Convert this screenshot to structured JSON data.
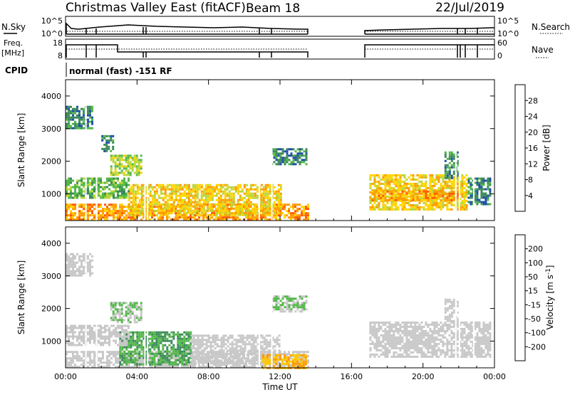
{
  "header": {
    "title": "Christmas Valley East (fitACF)",
    "beam": "Beam 18",
    "date": "22/Jul/2019"
  },
  "top_panels": {
    "nsky_label": "N.Sky",
    "nsky_ticks": [
      "10^5",
      "10^0"
    ],
    "nsearch_label": "N.Search",
    "freq_label_1": "Freq.",
    "freq_label_2": "[MHz]",
    "freq_ticks": [
      "18",
      "8"
    ],
    "nave_label": "Nave",
    "nave_ticks": [
      "60",
      "0"
    ],
    "cpid_label": "CPID",
    "cpid_text": "normal (fast) -151 RF"
  },
  "colors": {
    "power_scale": [
      "#0000ff",
      "#1f4fa8",
      "#3c8a5a",
      "#54b84a",
      "#b8d63a",
      "#ffd400",
      "#ff9a00",
      "#ff5a00",
      "#ff0000"
    ],
    "velocity_scale": [
      "#ff0000",
      "#ff5a00",
      "#ff9a00",
      "#ffc800",
      "#c8c8c8",
      "#54b84a",
      "#3c8a5a",
      "#1f4fa8",
      "#0000ff"
    ]
  },
  "chart_data": [
    {
      "type": "heatmap",
      "panel": "power",
      "xlabel": "",
      "ylabel": "Slant Range [km]",
      "colorbar_label": "Power [dB]",
      "colorbar_ticks": [
        "28",
        "24",
        "20",
        "16",
        "12",
        "8",
        "4"
      ],
      "xlim": [
        "00:00",
        "24:00"
      ],
      "ylim": [
        180,
        4500
      ],
      "x_ticks": [
        "00:00",
        "04:00",
        "08:00",
        "12:00",
        "16:00",
        "20:00",
        "00:00"
      ],
      "y_ticks": [
        "1000",
        "2000",
        "3000",
        "4000"
      ],
      "echo_regions": [
        {
          "t0": 0.0,
          "t1": 13.6,
          "r0": 180,
          "r1": 700,
          "level": 24
        },
        {
          "t0": 3.5,
          "t1": 12.0,
          "r0": 350,
          "r1": 1300,
          "level": 20
        },
        {
          "t0": 0.0,
          "t1": 3.5,
          "r0": 900,
          "r1": 1500,
          "level": 12
        },
        {
          "t0": 2.5,
          "t1": 4.2,
          "r0": 1600,
          "r1": 2200,
          "level": 16
        },
        {
          "t0": 0.0,
          "t1": 1.5,
          "r0": 3000,
          "r1": 3700,
          "level": 8
        },
        {
          "t0": 2.0,
          "t1": 2.6,
          "r0": 2300,
          "r1": 2800,
          "level": 8
        },
        {
          "t0": 11.5,
          "t1": 13.5,
          "r0": 1900,
          "r1": 2400,
          "level": 8
        },
        {
          "t0": 17.0,
          "t1": 22.5,
          "r0": 500,
          "r1": 1600,
          "level": 20
        },
        {
          "t0": 17.0,
          "t1": 22.0,
          "r0": 800,
          "r1": 1100,
          "level": 24
        },
        {
          "t0": 22.5,
          "t1": 23.8,
          "r0": 700,
          "r1": 1500,
          "level": 8
        },
        {
          "t0": 21.2,
          "t1": 22.0,
          "r0": 1500,
          "r1": 2300,
          "level": 8
        }
      ]
    },
    {
      "type": "heatmap",
      "panel": "velocity",
      "xlabel": "Time UT",
      "ylabel": "Slant Range [km]",
      "colorbar_label": "Velocity [m s^-1]",
      "colorbar_ticks": [
        "200",
        "100",
        "50",
        "15",
        "-15",
        "-50",
        "-100",
        "-200"
      ],
      "xlim": [
        "00:00",
        "24:00"
      ],
      "ylim": [
        180,
        4500
      ],
      "x_ticks": [
        "00:00",
        "04:00",
        "08:00",
        "12:00",
        "16:00",
        "20:00",
        "00:00"
      ],
      "y_ticks": [
        "1000",
        "2000",
        "3000",
        "4000"
      ],
      "echo_regions": [
        {
          "t0": 0.0,
          "t1": 13.6,
          "r0": 180,
          "r1": 700,
          "level": 0
        },
        {
          "t0": 3.0,
          "t1": 7.0,
          "r0": 300,
          "r1": 1300,
          "level": 50
        },
        {
          "t0": 7.0,
          "t1": 12.0,
          "r0": 300,
          "r1": 1200,
          "level": 0
        },
        {
          "t0": 11.0,
          "t1": 13.5,
          "r0": 200,
          "r1": 600,
          "level": -50
        },
        {
          "t0": 0.0,
          "t1": 3.5,
          "r0": 900,
          "r1": 1500,
          "level": 0
        },
        {
          "t0": 2.5,
          "t1": 4.2,
          "r0": 1600,
          "r1": 2200,
          "level": 15
        },
        {
          "t0": 0.0,
          "t1": 1.5,
          "r0": 3000,
          "r1": 3700,
          "level": 0
        },
        {
          "t0": 11.5,
          "t1": 13.5,
          "r0": 1900,
          "r1": 2400,
          "level": 15
        },
        {
          "t0": 17.0,
          "t1": 23.8,
          "r0": 500,
          "r1": 1600,
          "level": 0
        },
        {
          "t0": 21.2,
          "t1": 22.0,
          "r0": 1500,
          "r1": 2300,
          "level": 0
        }
      ]
    }
  ]
}
